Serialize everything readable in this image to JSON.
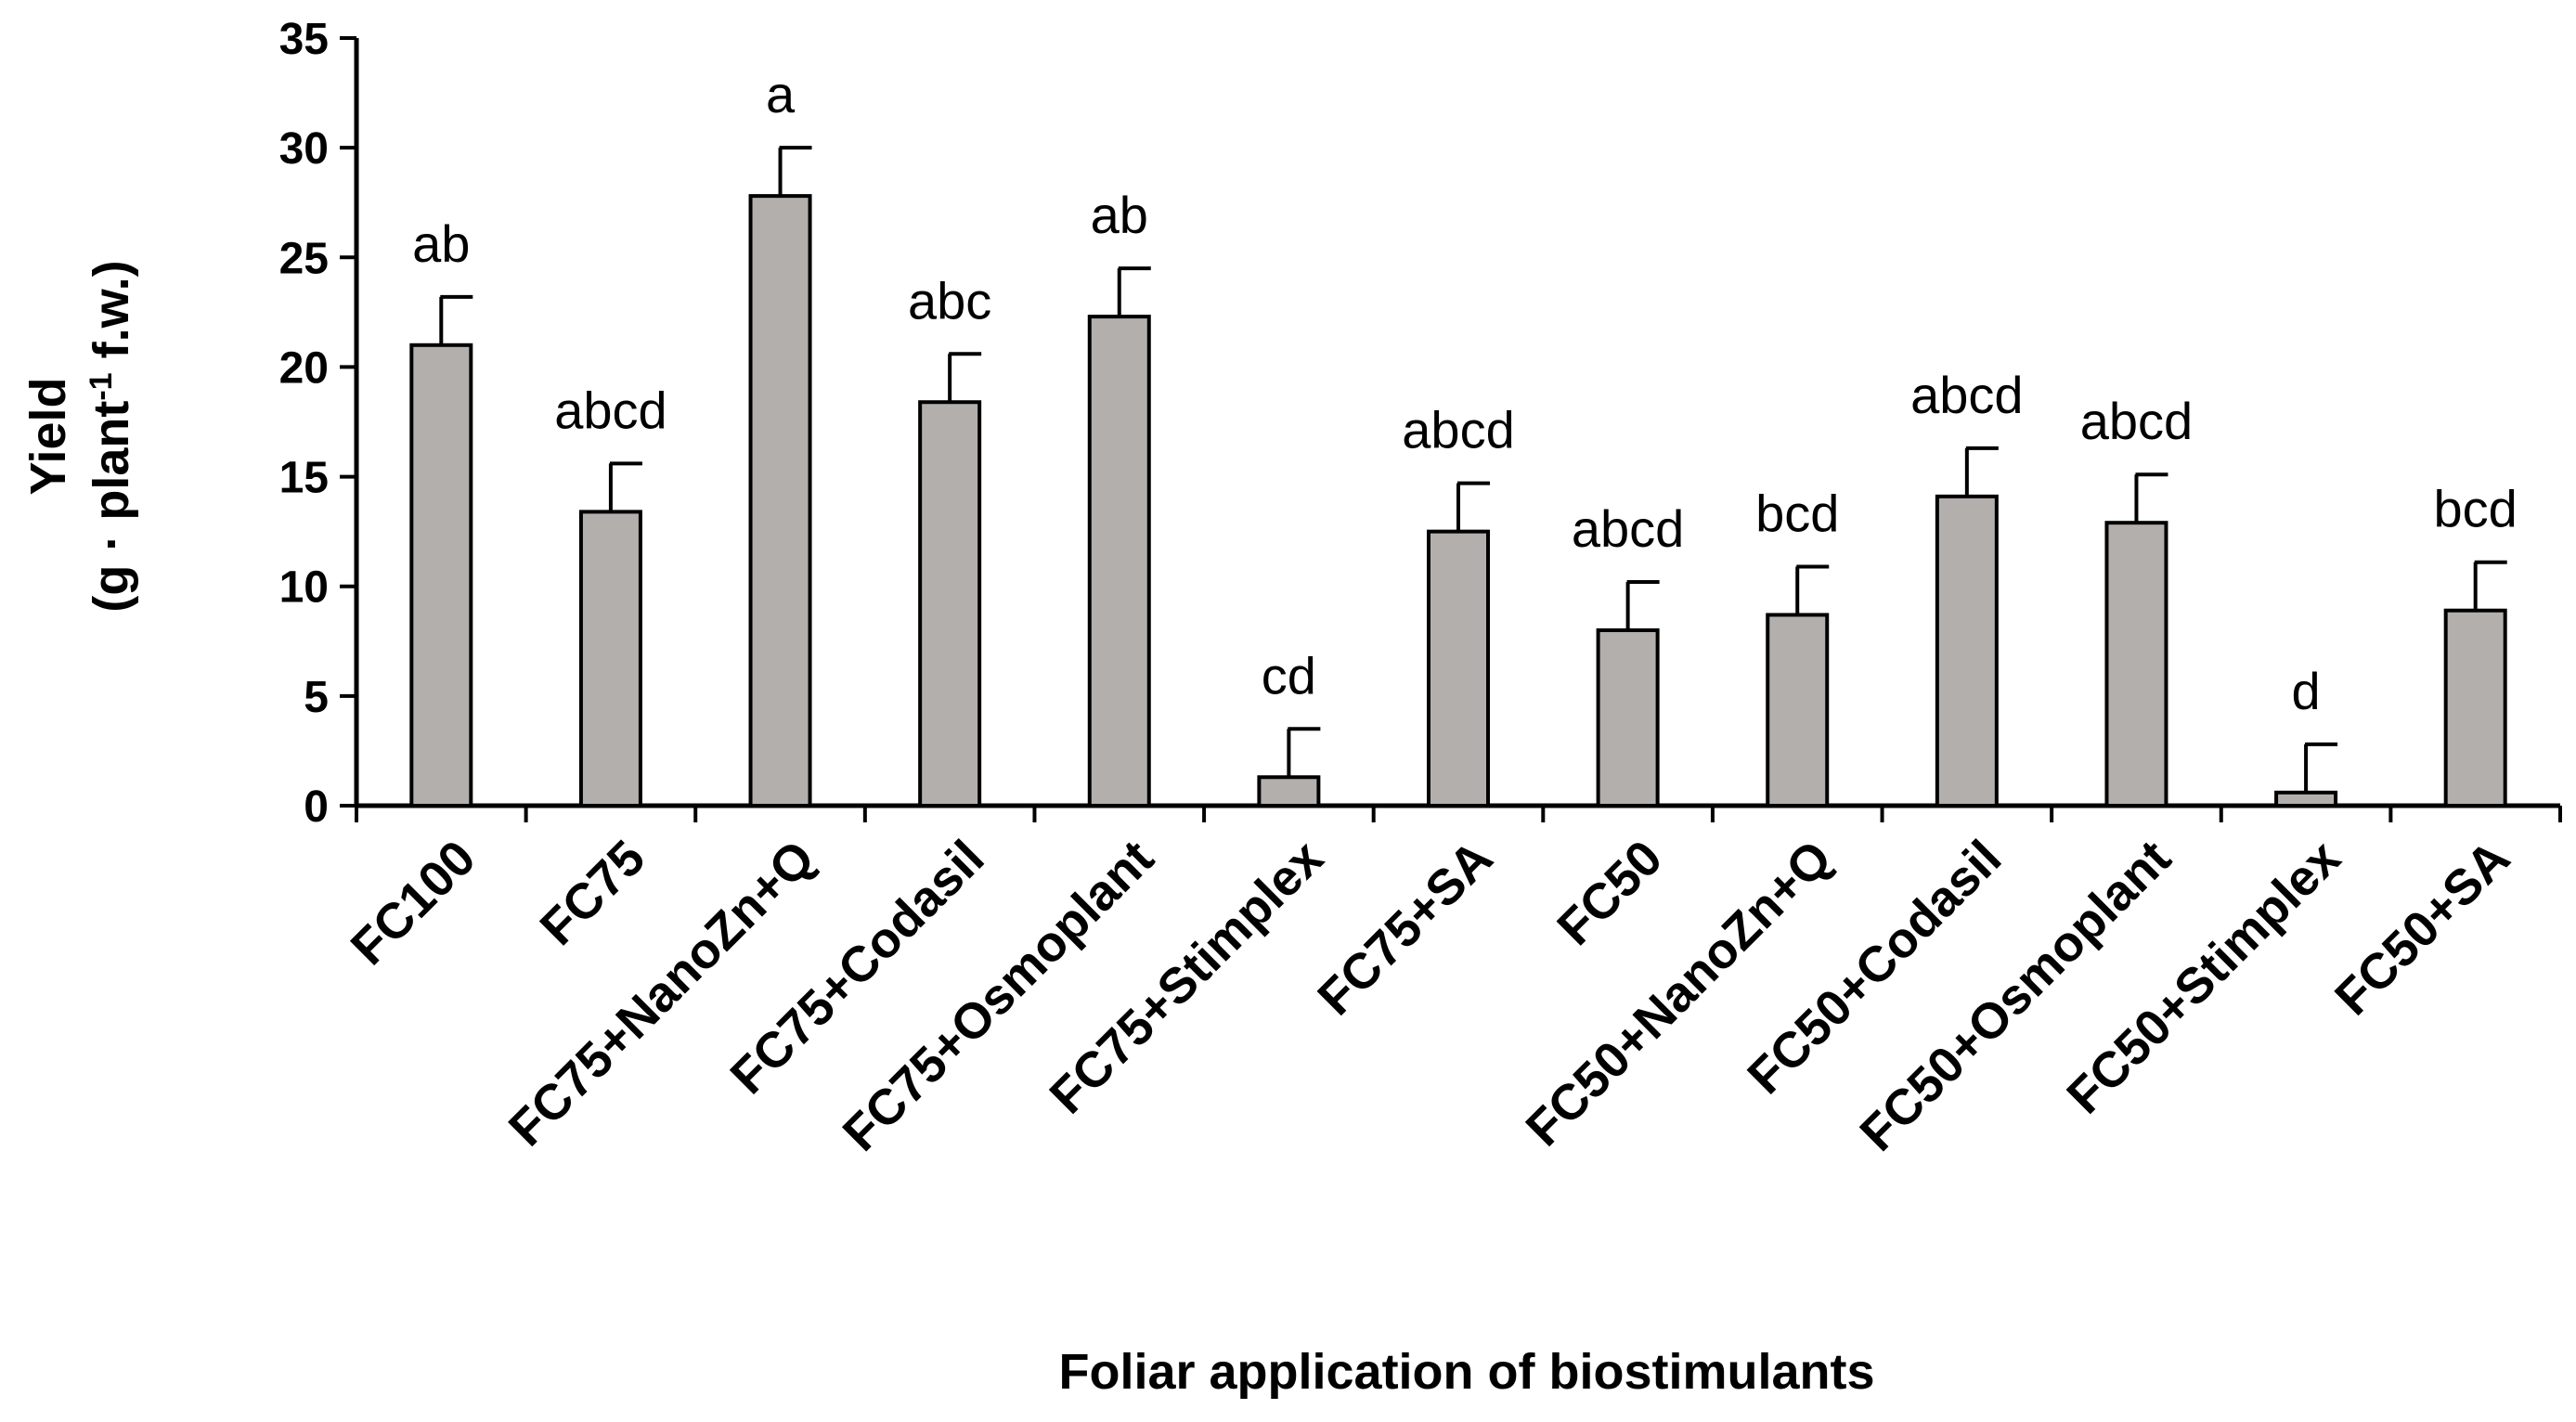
{
  "chart_data": {
    "type": "bar",
    "categories": [
      "FC100",
      "FC75",
      "FC75+NanoZn+Q",
      "FC75+Codasil",
      "FC75+Osmoplant",
      "FC75+Stimplex",
      "FC75+SA",
      "FC50",
      "FC50+NanoZn+Q",
      "FC50+Codasil",
      "FC50+Osmoplant",
      "FC50+Stimplex",
      "FC50+SA"
    ],
    "series": [
      {
        "values": [
          21.0,
          13.4,
          27.8,
          18.4,
          22.3,
          1.3,
          12.5,
          8.0,
          8.7,
          14.1,
          12.9,
          0.6,
          8.9
        ],
        "errors": [
          2.2,
          2.2,
          2.2,
          2.2,
          2.2,
          2.2,
          2.2,
          2.2,
          2.2,
          2.2,
          2.2,
          2.2,
          2.2
        ],
        "annotations": [
          "ab",
          "abcd",
          "a",
          "abc",
          "ab",
          "cd",
          "abcd",
          "abcd",
          "bcd",
          "abcd",
          "abcd",
          "d",
          "bcd"
        ]
      }
    ],
    "xlabel": "Foliar application of biostimulants",
    "ylabel_line1": "Yield",
    "ylabel_line2_prefix": "(g · plant",
    "ylabel_line2_sup": "-1",
    "ylabel_line2_suffix": " f.w.)",
    "ylim": [
      0,
      35
    ],
    "yticks": [
      0,
      5,
      10,
      15,
      20,
      25,
      30,
      35
    ],
    "grid": false,
    "colors": {
      "bar": "#b3afad",
      "edge": "#000000"
    }
  }
}
